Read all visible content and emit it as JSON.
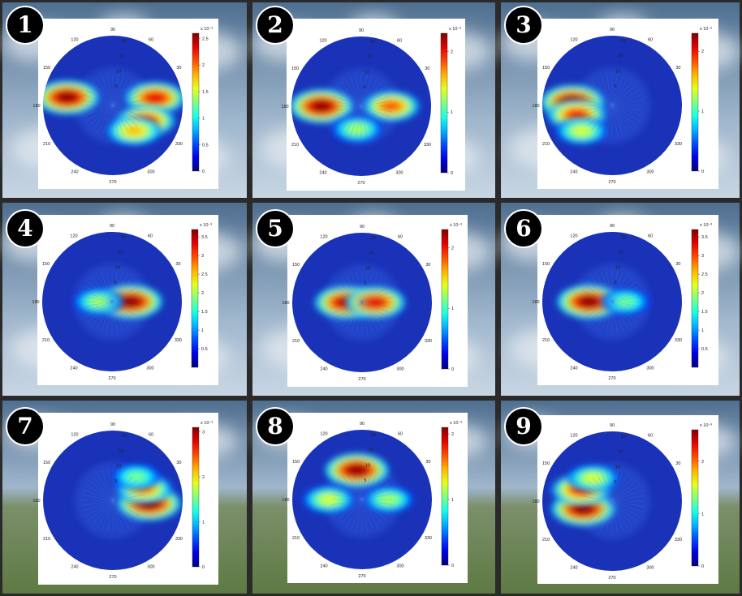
{
  "chart_data": [
    {
      "panel": "1",
      "type": "heatmap",
      "projection": "polar",
      "angle_labels": [
        "90",
        "120",
        "60",
        "150",
        "30",
        "180",
        "",
        "210",
        "330",
        "240",
        "300",
        "270"
      ],
      "radial_labels": [
        "20",
        "15",
        "10",
        "5"
      ],
      "colorbar": {
        "exponent_label": "x 10⁻³",
        "ticks": [
          "2.5",
          "2",
          "1.5",
          "1",
          "0.5",
          "0"
        ],
        "vmax": 2.6
      },
      "hotspots": [
        {
          "angle_deg": 170,
          "radius": 0.7,
          "intensity": 1.0
        },
        {
          "angle_deg": 10,
          "radius": 0.65,
          "intensity": 0.9
        },
        {
          "angle_deg": -25,
          "radius": 0.55,
          "intensity": 0.85
        },
        {
          "angle_deg": -50,
          "radius": 0.5,
          "intensity": 0.7
        }
      ]
    },
    {
      "panel": "2",
      "type": "heatmap",
      "projection": "polar",
      "angle_labels": [
        "90",
        "120",
        "60",
        "150",
        "30",
        "180",
        "",
        "210",
        "330",
        "240",
        "300",
        "270"
      ],
      "radial_labels": [
        "20",
        "15",
        "10",
        "5"
      ],
      "colorbar": {
        "exponent_label": "x 10⁻³",
        "ticks": [
          "2",
          "1",
          "0"
        ],
        "vmax": 2.3
      },
      "hotspots": [
        {
          "angle_deg": 180,
          "radius": 0.6,
          "intensity": 1.0
        },
        {
          "angle_deg": 0,
          "radius": 0.45,
          "intensity": 0.8
        },
        {
          "angle_deg": -100,
          "radius": 0.35,
          "intensity": 0.55
        }
      ]
    },
    {
      "panel": "3",
      "type": "heatmap",
      "projection": "polar",
      "angle_labels": [
        "90",
        "120",
        "60",
        "150",
        "30",
        "180",
        "",
        "210",
        "330",
        "240",
        "300",
        "270"
      ],
      "radial_labels": [
        "20",
        "15",
        "10",
        "5"
      ],
      "colorbar": {
        "exponent_label": "x 10⁻³",
        "ticks": [
          "2",
          "1",
          "0"
        ],
        "vmax": 2.3
      },
      "hotspots": [
        {
          "angle_deg": 175,
          "radius": 0.6,
          "intensity": 1.0
        },
        {
          "angle_deg": 195,
          "radius": 0.55,
          "intensity": 0.85
        },
        {
          "angle_deg": 220,
          "radius": 0.6,
          "intensity": 0.6
        }
      ]
    },
    {
      "panel": "4",
      "type": "heatmap",
      "projection": "polar",
      "angle_labels": [
        "90",
        "120",
        "60",
        "150",
        "30",
        "180",
        "",
        "210",
        "330",
        "240",
        "300",
        "270"
      ],
      "radial_labels": [
        "20",
        "15",
        "10",
        "5"
      ],
      "colorbar": {
        "exponent_label": "x 10⁻³",
        "ticks": [
          "3.5",
          "3",
          "2.5",
          "2",
          "1.5",
          "1",
          "0.5"
        ],
        "vmax": 3.7
      },
      "hotspots": [
        {
          "angle_deg": 0,
          "radius": 0.28,
          "intensity": 1.0
        },
        {
          "angle_deg": 180,
          "radius": 0.2,
          "intensity": 0.55
        }
      ]
    },
    {
      "panel": "5",
      "type": "heatmap",
      "projection": "polar",
      "angle_labels": [
        "90",
        "120",
        "60",
        "150",
        "30",
        "180",
        "",
        "210",
        "330",
        "240",
        "300",
        "270"
      ],
      "radial_labels": [
        "20",
        "15",
        "10",
        "5"
      ],
      "colorbar": {
        "exponent_label": "x 10⁻³",
        "ticks": [
          "2",
          "1",
          "0"
        ],
        "vmax": 2.3
      },
      "hotspots": [
        {
          "angle_deg": 180,
          "radius": 0.25,
          "intensity": 0.95
        },
        {
          "angle_deg": 0,
          "radius": 0.2,
          "intensity": 0.9
        }
      ]
    },
    {
      "panel": "6",
      "type": "heatmap",
      "projection": "polar",
      "angle_labels": [
        "90",
        "120",
        "60",
        "150",
        "30",
        "180",
        "",
        "210",
        "330",
        "240",
        "300",
        "270"
      ],
      "radial_labels": [
        "20",
        "15",
        "10",
        "5"
      ],
      "colorbar": {
        "exponent_label": "x 10⁻³",
        "ticks": [
          "3.5",
          "3",
          "2.5",
          "2",
          "1.5",
          "1",
          "0.5"
        ],
        "vmax": 3.7
      },
      "hotspots": [
        {
          "angle_deg": 180,
          "radius": 0.35,
          "intensity": 1.0
        },
        {
          "angle_deg": 0,
          "radius": 0.2,
          "intensity": 0.5
        }
      ]
    },
    {
      "panel": "7",
      "type": "heatmap",
      "projection": "polar",
      "angle_labels": [
        "90",
        "120",
        "60",
        "150",
        "30",
        "180",
        "",
        "210",
        "330",
        "240",
        "300",
        "270"
      ],
      "radial_labels": [
        "20",
        "15",
        "10",
        "5"
      ],
      "colorbar": {
        "exponent_label": "x 10⁻³",
        "ticks": [
          "3",
          "2",
          "1",
          "0"
        ],
        "vmax": 3.1
      },
      "hotspots": [
        {
          "angle_deg": -5,
          "radius": 0.55,
          "intensity": 1.0
        },
        {
          "angle_deg": 20,
          "radius": 0.5,
          "intensity": 0.75
        },
        {
          "angle_deg": 45,
          "radius": 0.5,
          "intensity": 0.5
        }
      ]
    },
    {
      "panel": "8",
      "type": "heatmap",
      "projection": "polar",
      "angle_labels": [
        "90",
        "120",
        "60",
        "150",
        "30",
        "180",
        "",
        "210",
        "330",
        "240",
        "300",
        "270"
      ],
      "radial_labels": [
        "20",
        "15",
        "10",
        "5"
      ],
      "colorbar": {
        "exponent_label": "x 10⁻³",
        "ticks": [
          "2",
          "1",
          "0"
        ],
        "vmax": 2.1
      },
      "hotspots": [
        {
          "angle_deg": 100,
          "radius": 0.45,
          "intensity": 1.0
        },
        {
          "angle_deg": 180,
          "radius": 0.5,
          "intensity": 0.6
        },
        {
          "angle_deg": 0,
          "radius": 0.4,
          "intensity": 0.55
        }
      ]
    },
    {
      "panel": "9",
      "type": "heatmap",
      "projection": "polar",
      "angle_labels": [
        "90",
        "120",
        "60",
        "150",
        "30",
        "180",
        "",
        "210",
        "330",
        "240",
        "300",
        "270"
      ],
      "radial_labels": [
        "20",
        "15",
        "10",
        "5"
      ],
      "colorbar": {
        "exponent_label": "x 10⁻³",
        "ticks": [
          "2",
          "1",
          "0"
        ],
        "vmax": 2.6
      },
      "hotspots": [
        {
          "angle_deg": 195,
          "radius": 0.45,
          "intensity": 1.0
        },
        {
          "angle_deg": 160,
          "radius": 0.5,
          "intensity": 0.85
        },
        {
          "angle_deg": 130,
          "radius": 0.45,
          "intensity": 0.6
        }
      ]
    }
  ],
  "colors": {
    "sky_top": "#4f6f90",
    "sky_mid": "#9fb6cc",
    "grass": "#5e7a43",
    "panel_bg": "#1b1b1b",
    "badge_fill": "#000000",
    "badge_text": "#ffffff"
  }
}
